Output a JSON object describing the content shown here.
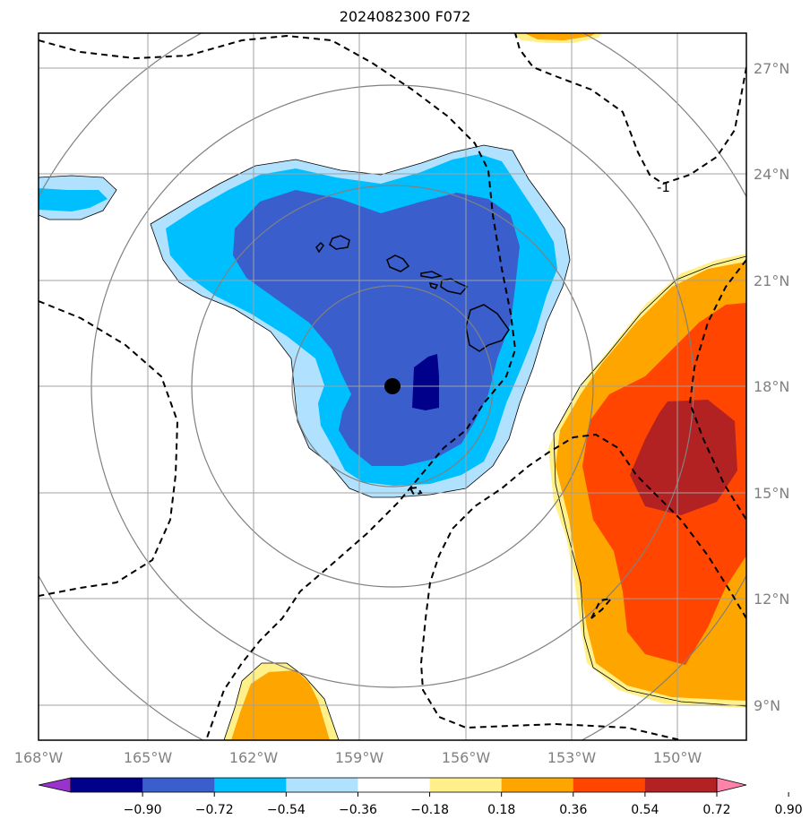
{
  "map": {
    "title": "2024082300 F072",
    "lon_labels": [
      "168°W",
      "165°W",
      "162°W",
      "159°W",
      "156°W",
      "153°W",
      "150°W"
    ],
    "lat_labels": [
      "27°N",
      "24°N",
      "21°N",
      "18°N",
      "15°N",
      "12°N",
      "9°N"
    ],
    "contour_label": "-1",
    "center_marker": {
      "lon": -158.0,
      "lat": 18.0
    }
  },
  "colorbar": {
    "ticks": [
      "−0.90",
      "−0.72",
      "−0.54",
      "−0.36",
      "−0.18",
      "0.18",
      "0.36",
      "0.54",
      "0.72",
      "0.90"
    ],
    "colors": [
      "#9a32cd",
      "#00008b",
      "#3a5fcd",
      "#00bfff",
      "#b0e2ff",
      "#ffffff",
      "#fff08a",
      "#ffa500",
      "#ff4500",
      "#b22222",
      "#ff82ab"
    ]
  }
}
